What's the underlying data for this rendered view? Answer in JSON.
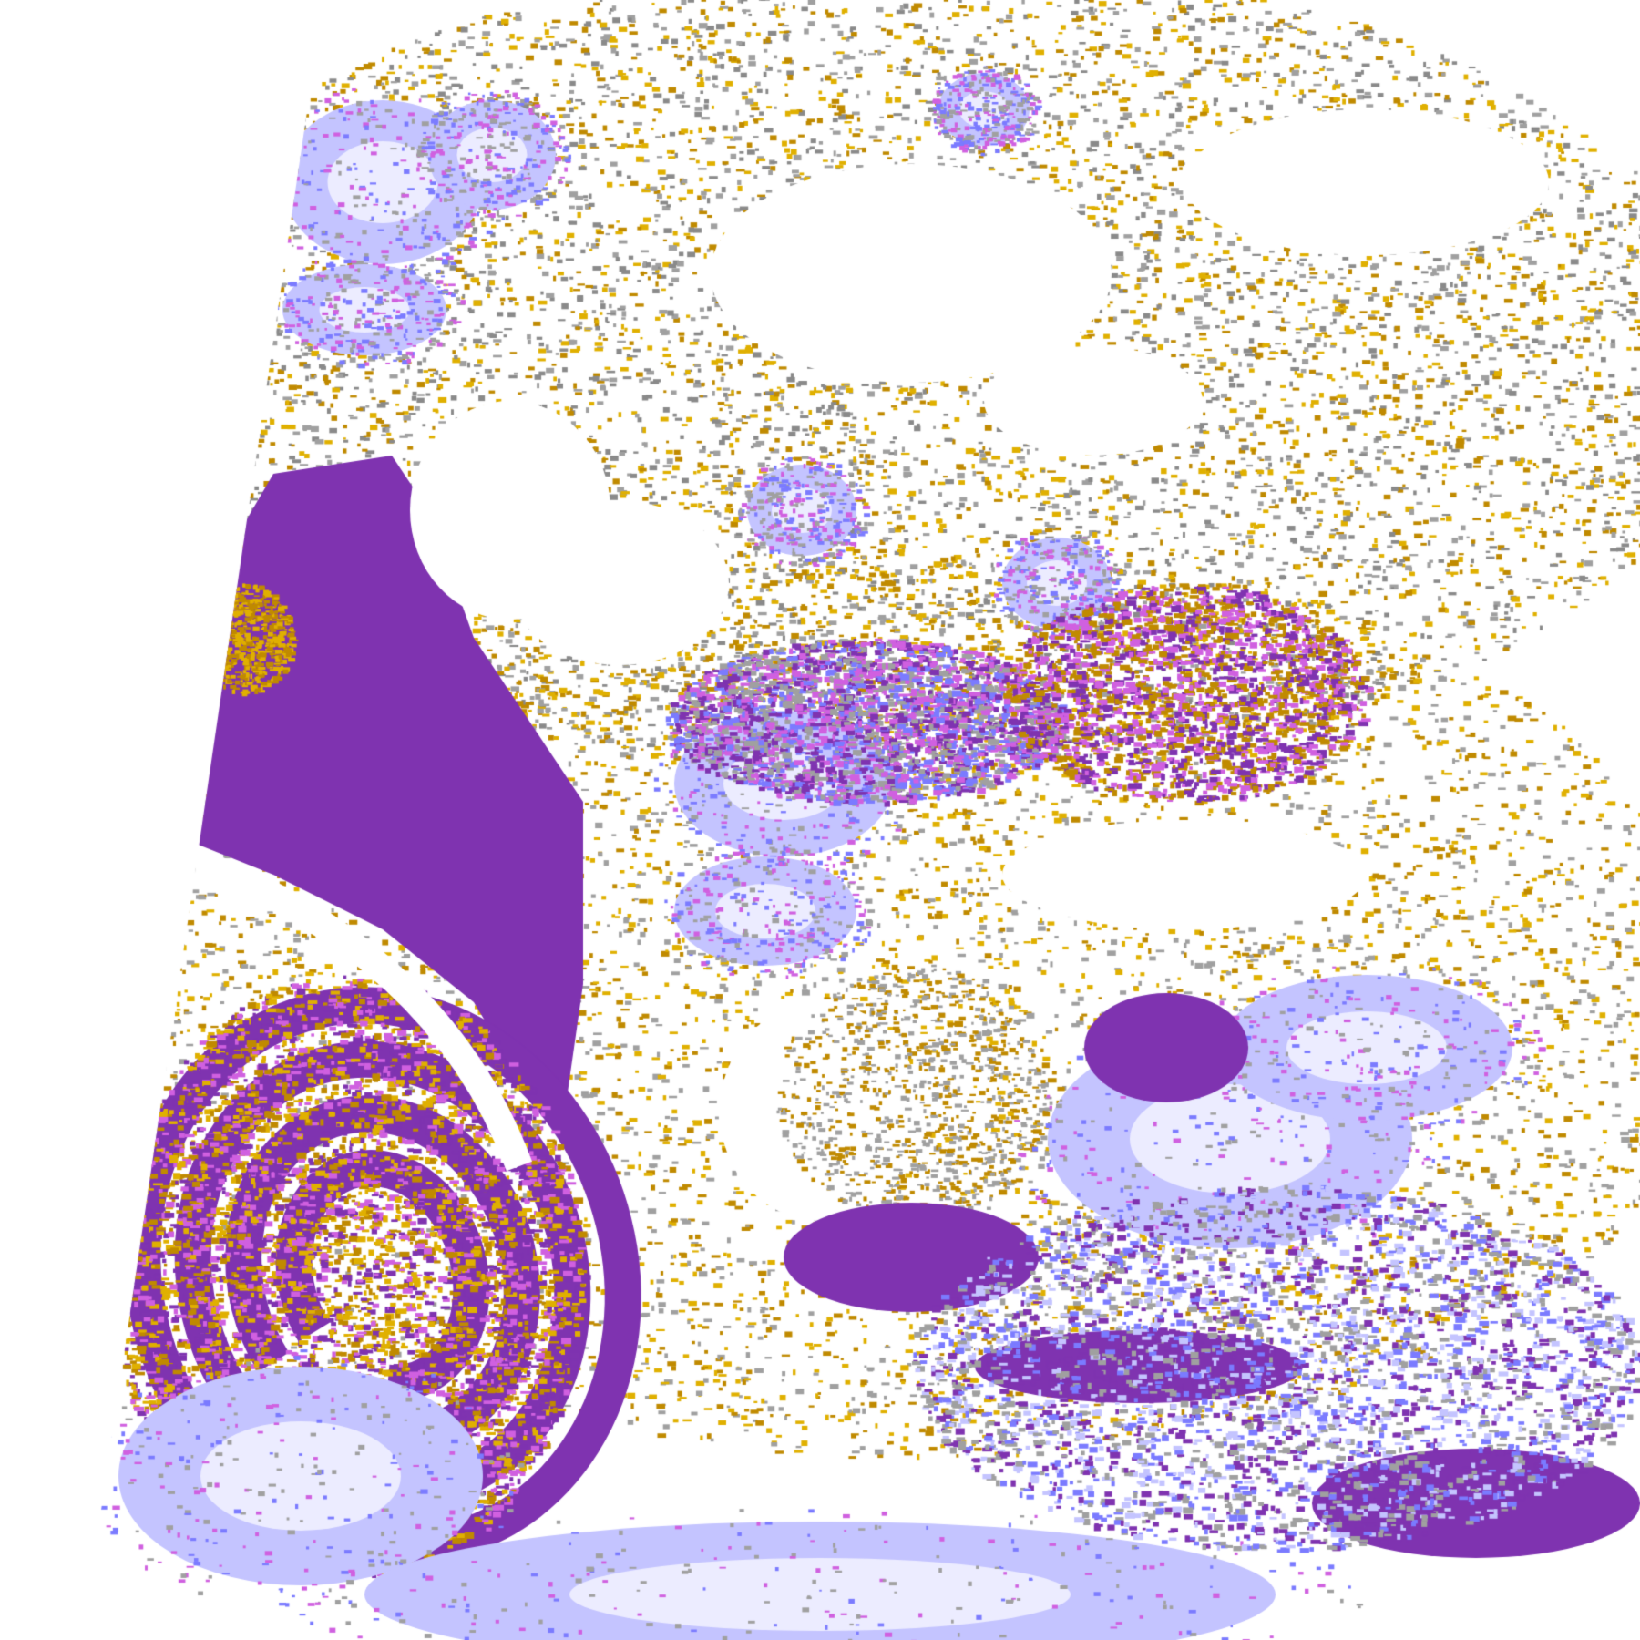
{
  "map": {
    "type": "satellite cloud-type classification composite",
    "palette": {
      "clear": "#ffffff",
      "ocean_low": "#7f33b0",
      "gold_light": "#e0b000",
      "gold_dark": "#c08a00",
      "grey": "#a0a0a0",
      "dark_grey": "#8a8a8a",
      "lavender": "#c4c4ff",
      "pale": "#ececff",
      "blue": "#7b7bff",
      "magenta": "#d060e0"
    }
  }
}
